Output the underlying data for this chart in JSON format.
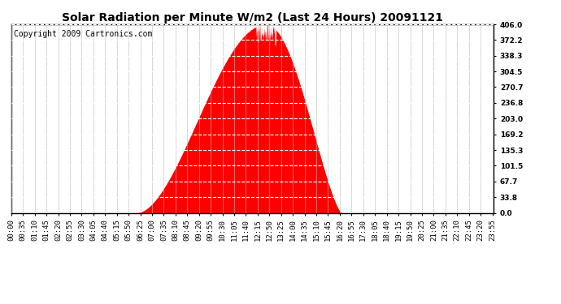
{
  "title": "Solar Radiation per Minute W/m2 (Last 24 Hours) 20091121",
  "copyright_text": "Copyright 2009 Cartronics.com",
  "yticks": [
    0.0,
    33.8,
    67.7,
    101.5,
    135.3,
    169.2,
    203.0,
    236.8,
    270.7,
    304.5,
    338.3,
    372.2,
    406.0
  ],
  "ymax": 406.0,
  "ymin": 0.0,
  "fill_color": "#FF0000",
  "dashed_line_color": "#FF0000",
  "background_color": "#FFFFFF",
  "title_fontsize": 10,
  "copyright_fontsize": 7,
  "tick_fontsize": 6.5,
  "total_minutes": 1440,
  "xtick_interval": 35,
  "rise_min": 375,
  "set_min": 985,
  "peak_min": 760,
  "peak_value": 406.0,
  "rise_power": 1.8,
  "set_power": 1.4
}
